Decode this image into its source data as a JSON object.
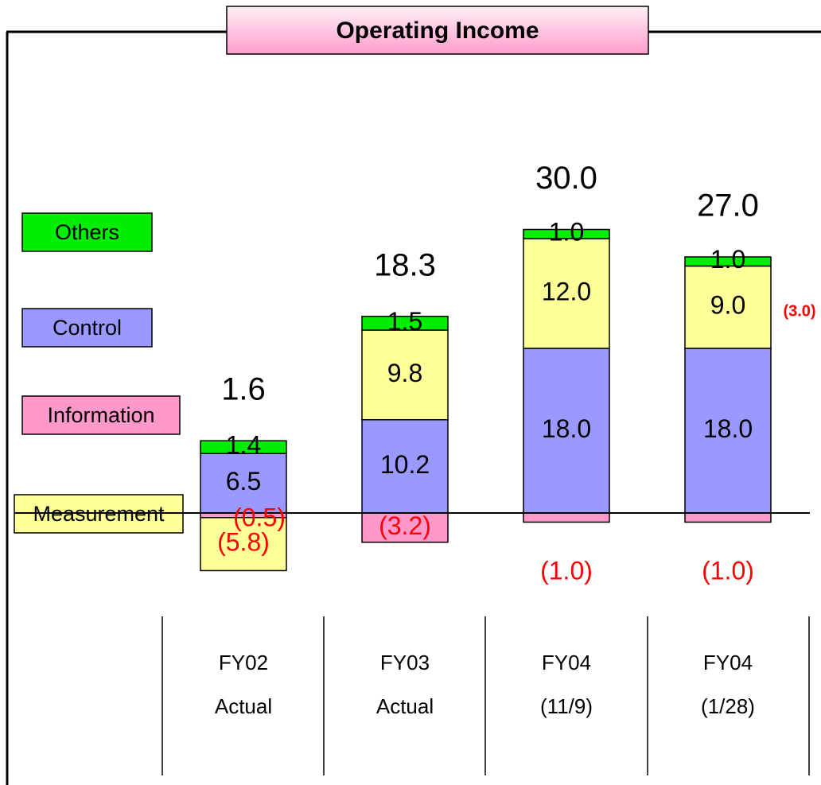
{
  "chart_data": {
    "type": "stacked-bar",
    "title": "Operating Income",
    "categories": [
      "FY02",
      "FY03",
      "FY04",
      "FY04"
    ],
    "category_sublabels": [
      "Actual",
      "Actual",
      "(11/9)",
      "(1/28)"
    ],
    "series": [
      {
        "name": "Information",
        "color": "#ff99cc",
        "values": [
          -0.5,
          -3.2,
          -1.0,
          -1.0
        ],
        "value_labels": [
          "(0.5)",
          "(3.2)",
          "(1.0)",
          "(1.0)"
        ]
      },
      {
        "name": "Control",
        "color": "#9999ff",
        "values": [
          6.5,
          10.2,
          18.0,
          18.0
        ],
        "value_labels": [
          "6.5",
          "10.2",
          "18.0",
          "18.0"
        ]
      },
      {
        "name": "Measurement",
        "color": "#ffff99",
        "values": [
          -5.8,
          9.8,
          12.0,
          9.0
        ],
        "value_labels": [
          "(5.8)",
          "9.8",
          "12.0",
          "9.0"
        ]
      },
      {
        "name": "Others",
        "color": "#00ee00",
        "values": [
          1.4,
          1.5,
          1.0,
          1.0
        ],
        "value_labels": [
          "1.4",
          "1.5",
          "1.0",
          "1.0"
        ]
      }
    ],
    "totals": [
      1.6,
      18.3,
      30.0,
      27.0
    ],
    "total_labels": [
      "1.6",
      "18.3",
      "30.0",
      "27.0"
    ],
    "annotations": [
      {
        "text": "(3.0)"
      }
    ]
  }
}
